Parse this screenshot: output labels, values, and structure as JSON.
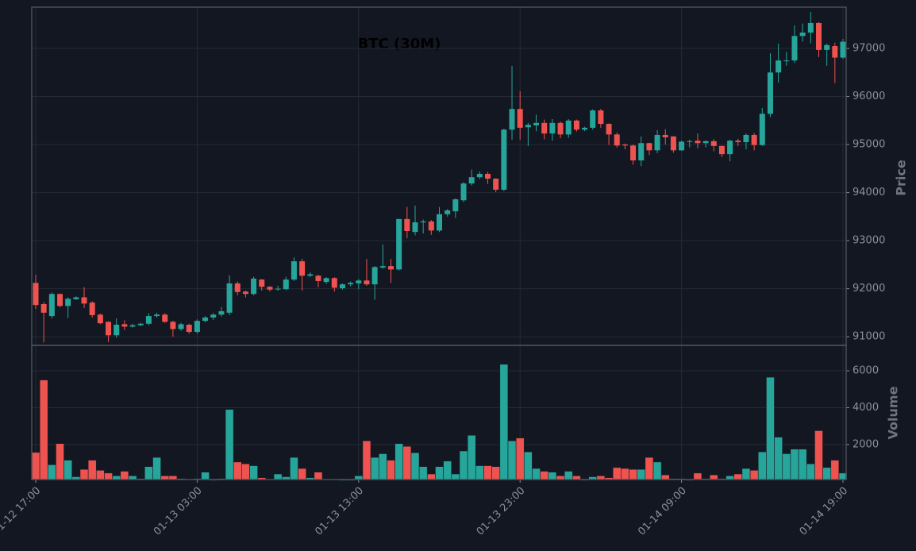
{
  "chart_data": {
    "type": "candlestick",
    "title": "BTC (30M)",
    "categories": [
      "01-12 17:00",
      null,
      null,
      null,
      null,
      null,
      null,
      null,
      null,
      null,
      null,
      null,
      null,
      null,
      null,
      null,
      null,
      null,
      null,
      null,
      "01-13 03:00",
      null,
      null,
      null,
      null,
      null,
      null,
      null,
      null,
      null,
      null,
      null,
      null,
      null,
      null,
      null,
      null,
      null,
      null,
      null,
      "01-13 13:00",
      null,
      null,
      null,
      null,
      null,
      null,
      null,
      null,
      null,
      null,
      null,
      null,
      null,
      null,
      null,
      null,
      null,
      null,
      null,
      "01-13 23:00",
      null,
      null,
      null,
      null,
      null,
      null,
      null,
      null,
      null,
      null,
      null,
      null,
      null,
      null,
      null,
      null,
      null,
      null,
      null,
      "01-14 09:00",
      null,
      null,
      null,
      null,
      null,
      null,
      null,
      null,
      null,
      null,
      null,
      null,
      null,
      null,
      null,
      null,
      null,
      null,
      null,
      "01-14 19:00"
    ],
    "open": [
      92120,
      91680,
      91430,
      91890,
      91640,
      91780,
      91820,
      91710,
      91460,
      91310,
      91030,
      91260,
      91210,
      91240,
      91270,
      91430,
      91460,
      91310,
      91160,
      91250,
      91100,
      91330,
      91400,
      91460,
      91500,
      92110,
      91940,
      91890,
      92190,
      92040,
      91990,
      91990,
      92190,
      92570,
      92270,
      92270,
      92140,
      92220,
      92010,
      92090,
      92110,
      92170,
      92090,
      92440,
      92470,
      92400,
      93450,
      93180,
      93380,
      93400,
      93210,
      93550,
      93610,
      93840,
      94190,
      94320,
      94390,
      94290,
      94060,
      95310,
      95740,
      95360,
      95400,
      95450,
      95230,
      95450,
      95210,
      95500,
      95310,
      95350,
      95710,
      95430,
      95210,
      95000,
      94980,
      94670,
      95030,
      94880,
      95200,
      95170,
      94880,
      95060,
      95080,
      95030,
      95070,
      94970,
      94800,
      95080,
      95050,
      95200,
      94990,
      95640,
      96500,
      96740,
      96750,
      97260,
      97330,
      97530,
      96970,
      97050,
      96810
    ],
    "high": [
      92290,
      91720,
      91920,
      91900,
      91820,
      91840,
      92030,
      91740,
      91480,
      91320,
      91380,
      91340,
      91270,
      91290,
      91490,
      91500,
      91490,
      91330,
      91290,
      91270,
      91360,
      91430,
      91490,
      91620,
      92280,
      92150,
      91960,
      92250,
      92200,
      92050,
      92060,
      92250,
      92650,
      92620,
      92340,
      92290,
      92240,
      92240,
      92110,
      92150,
      92200,
      92620,
      92470,
      92920,
      92620,
      93450,
      93700,
      93730,
      93440,
      93430,
      93700,
      93660,
      93880,
      94220,
      94480,
      94440,
      94430,
      94300,
      95330,
      96640,
      96110,
      95450,
      95620,
      95520,
      95530,
      95480,
      95530,
      95520,
      95370,
      95730,
      95740,
      95440,
      95250,
      95020,
      95000,
      95170,
      95040,
      95300,
      95320,
      95170,
      95080,
      95100,
      95230,
      95090,
      95110,
      94980,
      95100,
      95120,
      95230,
      95240,
      95760,
      96900,
      97100,
      96930,
      97480,
      97520,
      97760,
      97550,
      97100,
      97120,
      97200
    ],
    "low": [
      91580,
      90880,
      91380,
      91610,
      91390,
      91770,
      91600,
      91400,
      91260,
      90890,
      90980,
      91140,
      91190,
      91220,
      91240,
      91400,
      91290,
      91000,
      91120,
      91060,
      91060,
      91300,
      91350,
      91420,
      91450,
      91860,
      91820,
      91860,
      91960,
      91940,
      91960,
      91970,
      92160,
      91960,
      92240,
      92030,
      92100,
      91940,
      91980,
      92050,
      91990,
      92060,
      91770,
      92410,
      92120,
      92380,
      93050,
      93110,
      93150,
      93120,
      93180,
      93500,
      93470,
      93800,
      94150,
      94280,
      94180,
      94010,
      94030,
      95100,
      95100,
      94970,
      95280,
      95110,
      95080,
      95130,
      95140,
      95270,
      95280,
      95310,
      95350,
      94990,
      94940,
      94900,
      94580,
      94550,
      94780,
      94820,
      95000,
      94830,
      94870,
      94940,
      94920,
      94940,
      94860,
      94740,
      94650,
      94970,
      94900,
      94880,
      94970,
      95570,
      96290,
      96640,
      96700,
      97140,
      97110,
      96820,
      96640,
      96280,
      96780
    ],
    "close": [
      91660,
      91500,
      91890,
      91640,
      91790,
      91820,
      91690,
      91450,
      91280,
      91030,
      91250,
      91210,
      91240,
      91270,
      91430,
      91460,
      91310,
      91160,
      91260,
      91100,
      91330,
      91400,
      91460,
      91530,
      92110,
      91930,
      91890,
      92210,
      92040,
      91980,
      92000,
      92190,
      92570,
      92270,
      92300,
      92160,
      92220,
      92020,
      92090,
      92120,
      92170,
      92090,
      92450,
      92470,
      92400,
      93450,
      93200,
      93380,
      93400,
      93210,
      93550,
      93630,
      93860,
      94190,
      94320,
      94390,
      94290,
      94060,
      95310,
      95740,
      95350,
      95410,
      95450,
      95230,
      95450,
      95210,
      95500,
      95310,
      95350,
      95710,
      95430,
      95210,
      94980,
      94980,
      94670,
      95030,
      94880,
      95200,
      95150,
      94880,
      95060,
      95070,
      95030,
      95070,
      94970,
      94800,
      95080,
      95050,
      95200,
      94990,
      95640,
      96500,
      96750,
      96750,
      97260,
      97330,
      97530,
      96970,
      97070,
      96810,
      97140
    ],
    "up_color": "#26a69a",
    "down_color": "#ef5350",
    "ylabel": "Price",
    "ylim": [
      90820,
      97860
    ],
    "yticks": [
      91000,
      92000,
      93000,
      94000,
      95000,
      96000,
      97000
    ],
    "grid": true,
    "volume": {
      "ylabel": "Volume",
      "values": [
        1570,
        5500,
        900,
        2050,
        1150,
        250,
        650,
        1150,
        600,
        450,
        300,
        550,
        300,
        150,
        800,
        1300,
        300,
        300,
        150,
        100,
        150,
        500,
        50,
        150,
        3900,
        1050,
        950,
        850,
        200,
        100,
        400,
        250,
        1300,
        700,
        200,
        500,
        100,
        100,
        50,
        50,
        300,
        2200,
        1300,
        1500,
        1150,
        2050,
        1900,
        1550,
        800,
        400,
        800,
        1100,
        400,
        1650,
        2500,
        850,
        850,
        800,
        6350,
        2200,
        2350,
        1600,
        700,
        550,
        500,
        300,
        550,
        300,
        50,
        250,
        300,
        200,
        750,
        700,
        650,
        650,
        1300,
        1050,
        350,
        150,
        150,
        50,
        450,
        150,
        350,
        150,
        300,
        400,
        700,
        600,
        1600,
        5650,
        2400,
        1500,
        1750,
        1750,
        950,
        2750,
        750,
        1150,
        450
      ],
      "ylim": [
        100,
        7380
      ],
      "yticks": [
        2000,
        4000,
        6000
      ]
    }
  }
}
